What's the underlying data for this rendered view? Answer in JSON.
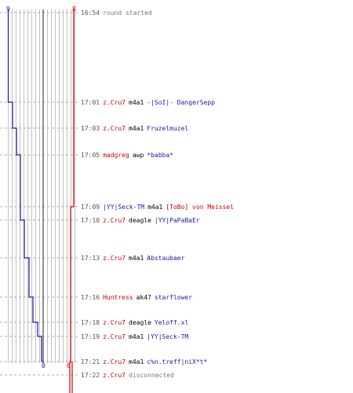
{
  "score_axis": {
    "start_left": "9",
    "start_right": "8",
    "end_left": "0",
    "end_right": "6"
  },
  "colors": {
    "team_a": "#1a1aa8",
    "team_b": "#cc0000",
    "grid": "#b0b0b0",
    "divider": "#555555",
    "dashes": "#999999"
  },
  "events": [
    {
      "time": "16:54",
      "description": "round started"
    },
    {
      "time": "17:01",
      "killer": "z.Cru7",
      "killer_team": "red",
      "weapon": "m4a1",
      "victim": "-|SoI|- DangerSepp",
      "victim_team": "blue"
    },
    {
      "time": "17:03",
      "killer": "z.Cru7",
      "killer_team": "red",
      "weapon": "m4a1",
      "victim": "Fruzelmuzel",
      "victim_team": "blue"
    },
    {
      "time": "17:05",
      "killer": "madgreg",
      "killer_team": "red",
      "weapon": "awp",
      "victim": "*babba*",
      "victim_team": "blue"
    },
    {
      "time": "17:09",
      "killer": "|YY|Seck-TM",
      "killer_team": "blue",
      "weapon": "m4a1",
      "victim": "[ToBo] von Meissel",
      "victim_team": "red"
    },
    {
      "time": "17:10",
      "killer": "z.Cru7",
      "killer_team": "red",
      "weapon": "deagle",
      "victim": "|YY|PaPaBaEr",
      "victim_team": "blue"
    },
    {
      "time": "17:13",
      "killer": "z.Cru7",
      "killer_team": "red",
      "weapon": "m4a1",
      "victim": "Abstaubaer",
      "victim_team": "blue"
    },
    {
      "time": "17:16",
      "killer": "Huntress",
      "killer_team": "red",
      "weapon": "ak47",
      "victim": "starflower",
      "victim_team": "blue"
    },
    {
      "time": "17:18",
      "killer": "z.Cru7",
      "killer_team": "red",
      "weapon": "deagle",
      "victim": "Yeloff.xl",
      "victim_team": "blue"
    },
    {
      "time": "17:19",
      "killer": "z.Cru7",
      "killer_team": "red",
      "weapon": "m4a1",
      "victim": "|YY|Seck-TM",
      "victim_team": "blue"
    },
    {
      "time": "17:21",
      "killer": "z.Cru7",
      "killer_team": "red",
      "weapon": "m4a1",
      "victim": "c%n.treff|niX*t*",
      "victim_team": "blue"
    },
    {
      "time": "17:22",
      "killer": "z.Cru7",
      "killer_team": "red",
      "description": "disconnected"
    }
  ]
}
